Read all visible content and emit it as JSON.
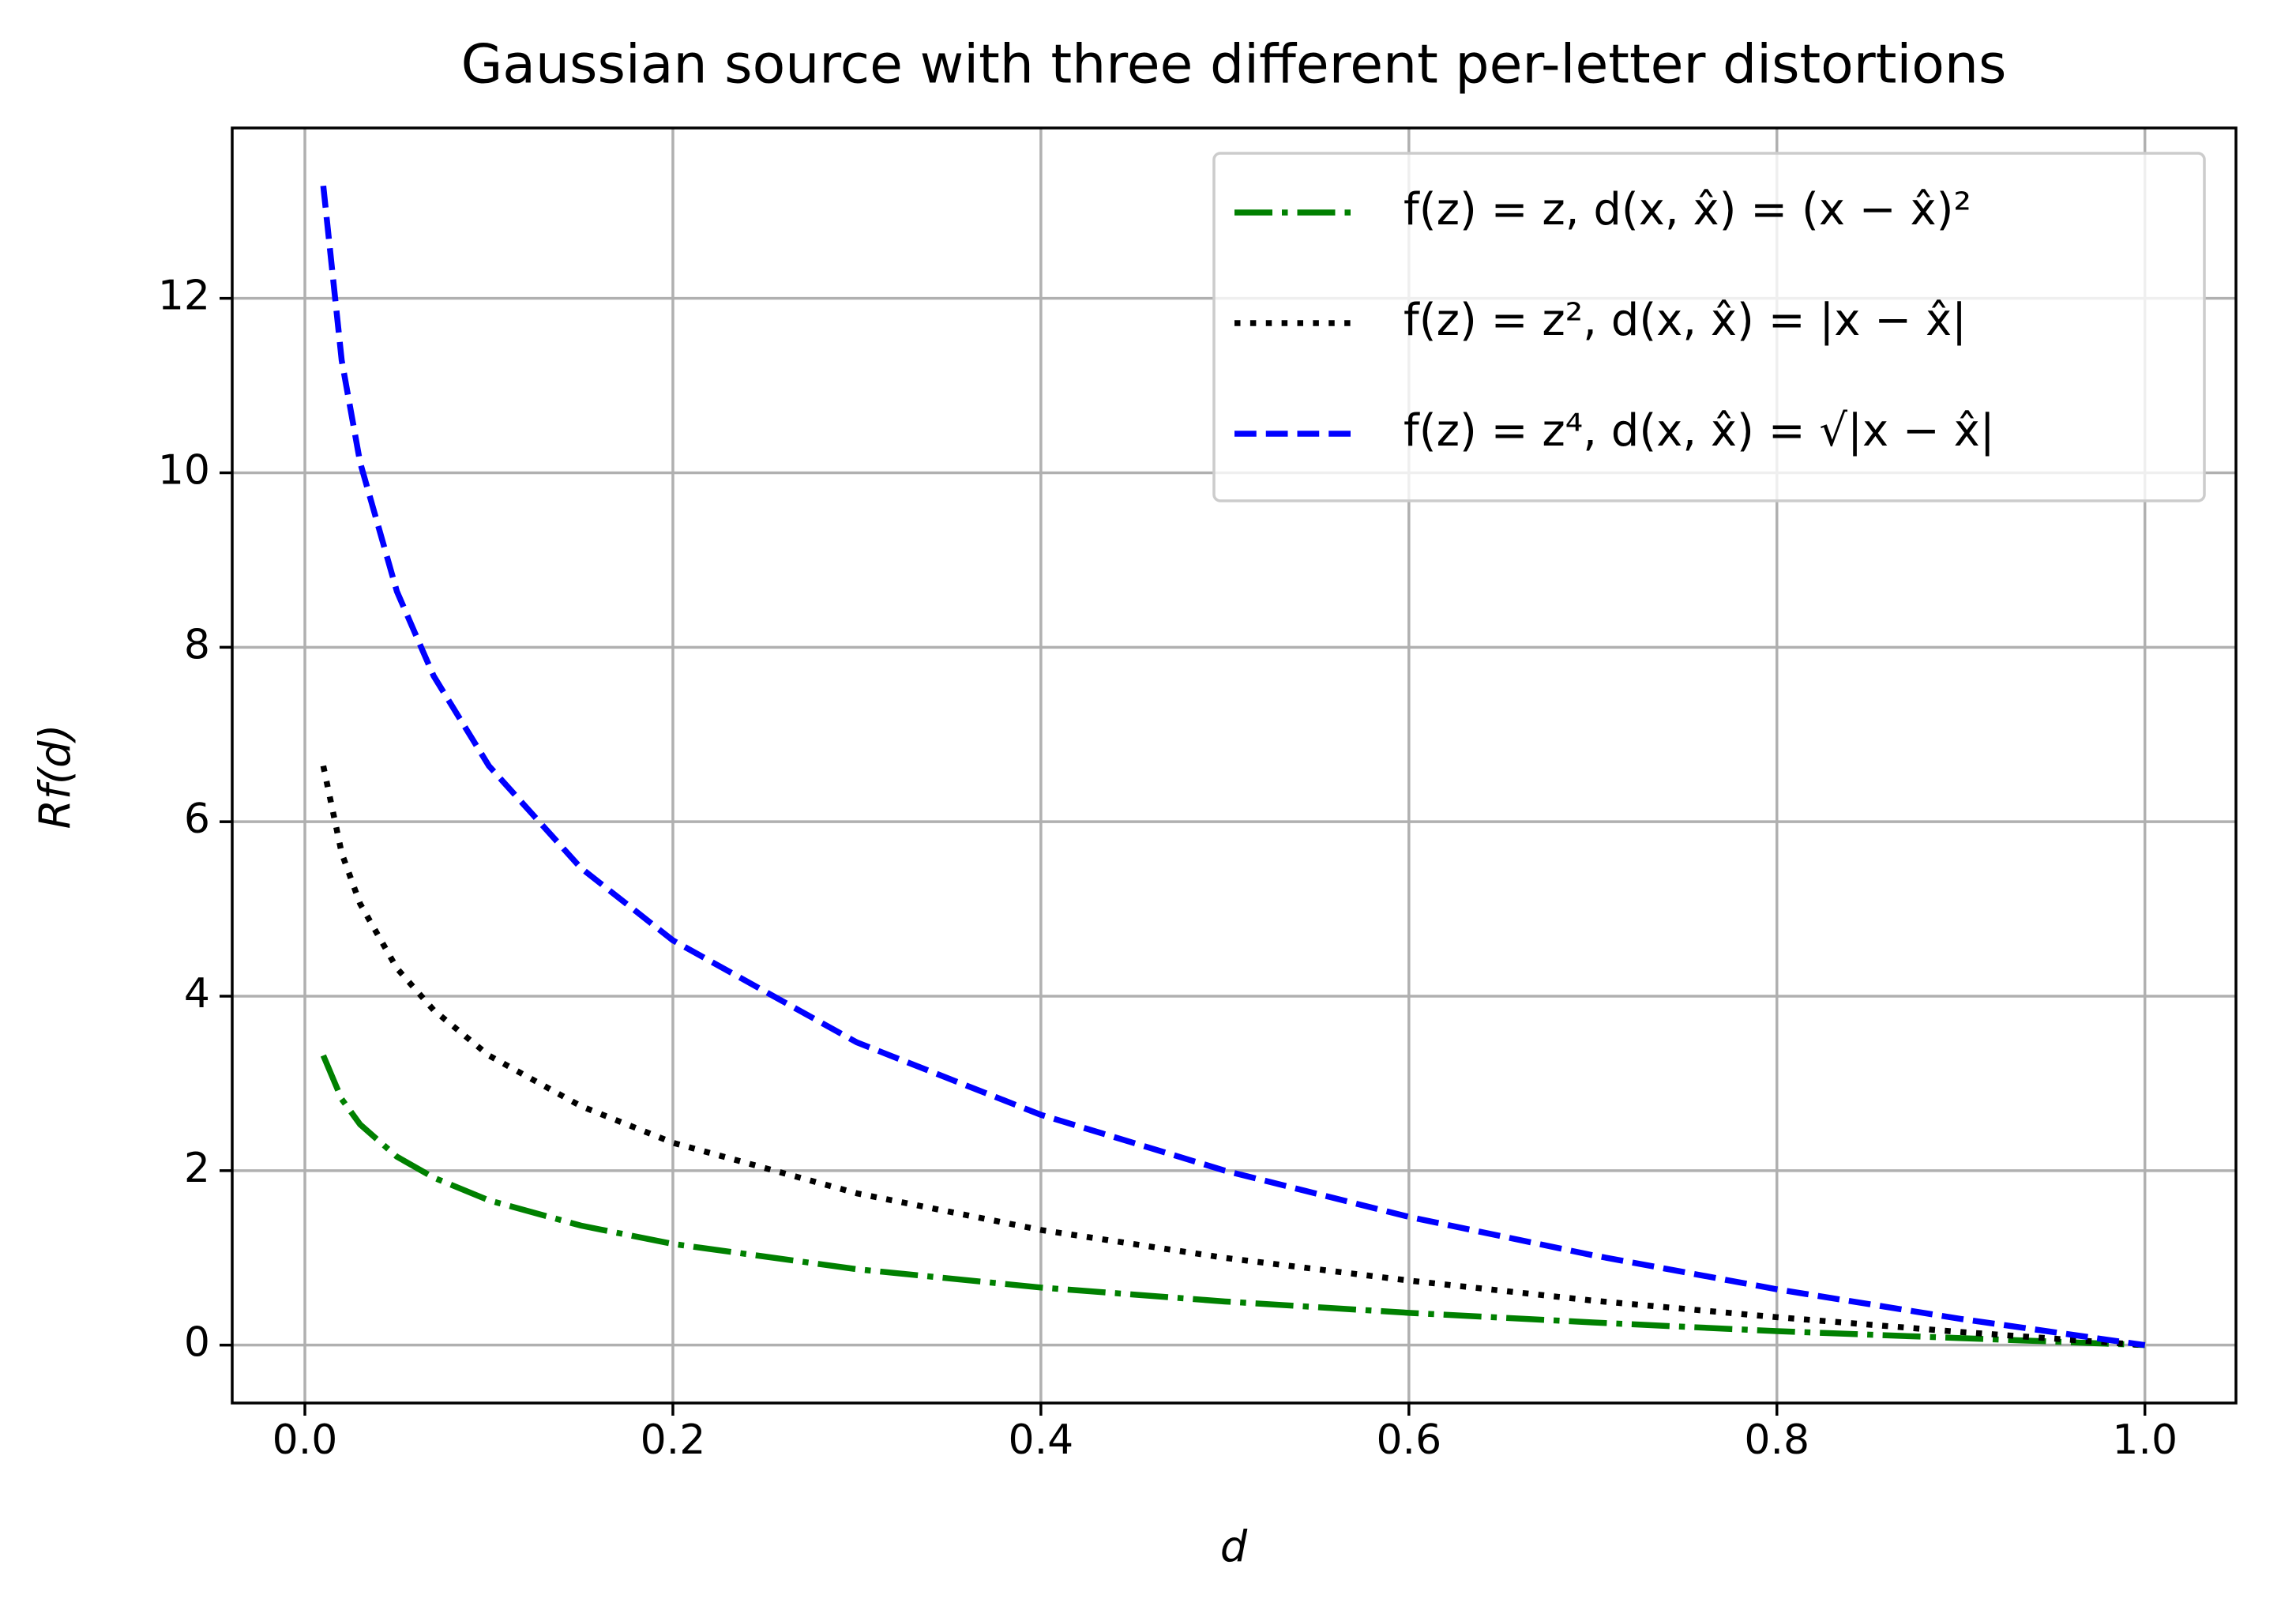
{
  "chart_data": {
    "type": "line",
    "title": "Gaussian source with three different per-letter distortions",
    "xlabel": "d",
    "ylabel": "Rf(d)",
    "x": [
      0.01,
      0.02,
      0.03,
      0.05,
      0.07,
      0.1,
      0.15,
      0.2,
      0.3,
      0.4,
      0.5,
      0.6,
      0.7,
      0.8,
      0.9,
      1.0
    ],
    "series": [
      {
        "name": "f(z) = z, d(x, x̂) = (x − x̂)²",
        "color": "#008000",
        "linestyle": "dashdot",
        "values": [
          3.32,
          2.82,
          2.53,
          2.16,
          1.92,
          1.66,
          1.37,
          1.16,
          0.87,
          0.66,
          0.5,
          0.37,
          0.26,
          0.16,
          0.08,
          0
        ]
      },
      {
        "name": "f(z) = z², d(x, x̂) = |x − x̂|",
        "color": "#000000",
        "linestyle": "dotted",
        "values": [
          6.64,
          5.64,
          5.06,
          4.32,
          3.84,
          3.32,
          2.74,
          2.32,
          1.74,
          1.32,
          1.0,
          0.74,
          0.51,
          0.32,
          0.15,
          0
        ]
      },
      {
        "name": "f(z) = z⁴, d(x, x̂) = √|x − x̂|",
        "color": "#0000ff",
        "linestyle": "dashed",
        "values": [
          13.29,
          11.29,
          10.12,
          8.64,
          7.67,
          6.64,
          5.47,
          4.64,
          3.47,
          2.64,
          2.0,
          1.47,
          1.03,
          0.64,
          0.3,
          0
        ]
      }
    ],
    "xlim": [
      -0.0395,
      1.0495
    ],
    "xticks": [
      {
        "value": 0,
        "label": "0.0"
      },
      0.2,
      0.4,
      0.6,
      0.8,
      {
        "value": 1,
        "label": "1.0"
      }
    ],
    "ylim": [
      -0.664,
      13.953
    ],
    "yticks": [
      0,
      2,
      4,
      6,
      8,
      10,
      12
    ],
    "grid": true,
    "legend": "upper right"
  }
}
